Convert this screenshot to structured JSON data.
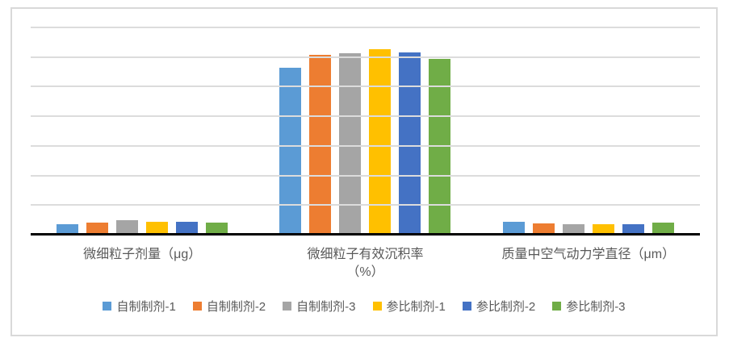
{
  "chart_data": {
    "type": "bar",
    "title": "",
    "categories": [
      "微细粒子剂量（μg）",
      "微细粒子有效沉积率（%）",
      "质量中空气动力学直径（μm）"
    ],
    "category_label_lines": [
      [
        "微细粒子剂量（μg）"
      ],
      [
        "微细粒子有效沉积率",
        "（%）"
      ],
      [
        "质量中空气动力学直径（μm）"
      ]
    ],
    "series": [
      {
        "name": "自制制剂-1",
        "color": "#5B9BD5",
        "values": [
          3.4,
          56.0,
          4.0
        ]
      },
      {
        "name": "自制制剂-2",
        "color": "#ED7D31",
        "values": [
          3.9,
          60.4,
          3.5
        ]
      },
      {
        "name": "自制制剂-3",
        "color": "#A5A5A5",
        "values": [
          4.7,
          61.0,
          3.2
        ]
      },
      {
        "name": "参比制剂-1",
        "color": "#FFC000",
        "values": [
          4.2,
          62.4,
          3.4
        ]
      },
      {
        "name": "参比制剂-2",
        "color": "#4472C4",
        "values": [
          4.1,
          61.3,
          3.4
        ]
      },
      {
        "name": "参比制剂-3",
        "color": "#70AD47",
        "values": [
          3.9,
          59.0,
          3.8
        ]
      }
    ],
    "xlabel": "",
    "ylabel": "",
    "ylim": [
      0,
      70
    ],
    "gridline_step": 10,
    "grid": true,
    "y_tick_labels_visible": false,
    "legend_position": "bottom",
    "colors": {
      "gridline": "#DCDCDC",
      "frame_border": "#D9D9D9",
      "axis_line": "#000000",
      "label_text": "#595959"
    }
  }
}
